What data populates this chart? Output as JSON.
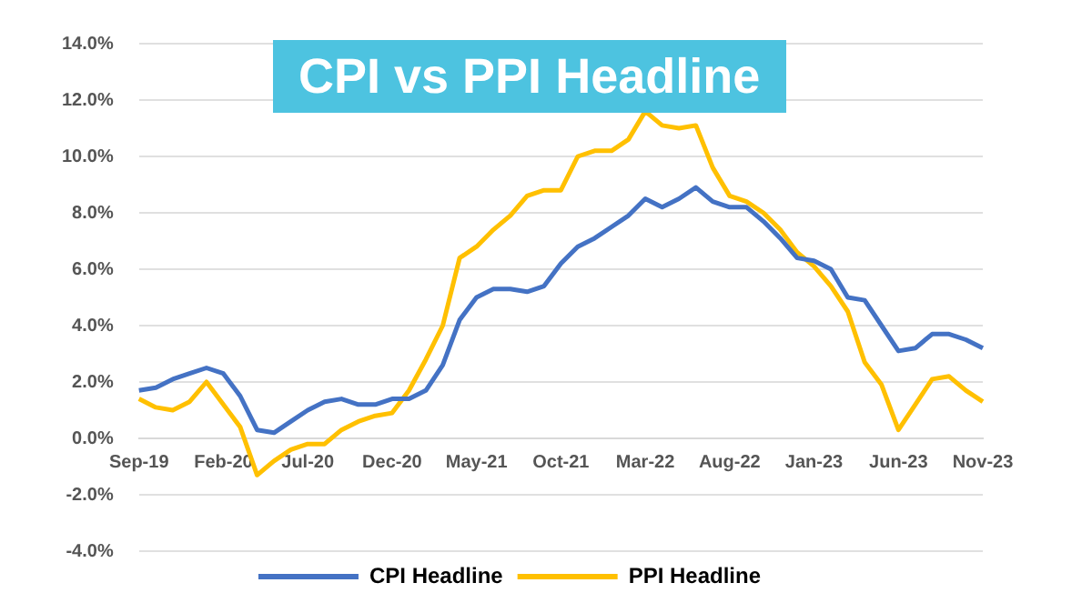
{
  "chart_data": {
    "type": "line",
    "title": "CPI vs PPI Headline",
    "categories": [
      "Sep-19",
      null,
      null,
      null,
      null,
      "Feb-20",
      null,
      null,
      null,
      null,
      "Jul-20",
      null,
      null,
      null,
      null,
      "Dec-20",
      null,
      null,
      null,
      null,
      "May-21",
      null,
      null,
      null,
      null,
      "Oct-21",
      null,
      null,
      null,
      null,
      "Mar-22",
      null,
      null,
      null,
      null,
      "Aug-22",
      null,
      null,
      null,
      null,
      "Jan-23",
      null,
      null,
      null,
      null,
      "Jun-23",
      null,
      null,
      null,
      null,
      "Nov-23"
    ],
    "series": [
      {
        "name": "CPI Headline",
        "color": "#4472c4",
        "values": [
          1.7,
          1.8,
          2.1,
          2.3,
          2.5,
          2.3,
          1.5,
          0.3,
          0.2,
          0.6,
          1.0,
          1.3,
          1.4,
          1.2,
          1.2,
          1.4,
          1.4,
          1.7,
          2.6,
          4.2,
          5.0,
          5.3,
          5.3,
          5.2,
          5.4,
          6.2,
          6.8,
          7.1,
          7.5,
          7.9,
          8.5,
          8.2,
          8.5,
          8.9,
          8.4,
          8.2,
          8.2,
          7.7,
          7.1,
          6.4,
          6.3,
          6.0,
          5.0,
          4.9,
          4.0,
          3.1,
          3.2,
          3.7,
          3.7,
          3.5,
          3.2
        ]
      },
      {
        "name": "PPI Headline",
        "color": "#ffc000",
        "values": [
          1.4,
          1.1,
          1.0,
          1.3,
          2.0,
          1.2,
          0.4,
          -1.3,
          -0.8,
          -0.4,
          -0.2,
          -0.2,
          0.3,
          0.6,
          0.8,
          0.9,
          1.7,
          2.8,
          4.0,
          6.4,
          6.8,
          7.4,
          7.9,
          8.6,
          8.8,
          8.8,
          10.0,
          10.2,
          10.2,
          10.6,
          11.6,
          11.1,
          11.0,
          11.1,
          9.6,
          8.6,
          8.4,
          8.0,
          7.4,
          6.6,
          6.1,
          5.4,
          4.5,
          2.7,
          1.9,
          0.3,
          1.2,
          2.1,
          2.2,
          1.7,
          1.3
        ]
      }
    ],
    "ylim": [
      -4,
      14
    ],
    "yticks": [
      {
        "value": -4,
        "label": "-4.0%"
      },
      {
        "value": -2,
        "label": "-2.0%"
      },
      {
        "value": 0,
        "label": "0.0%"
      },
      {
        "value": 2,
        "label": "2.0%"
      },
      {
        "value": 4,
        "label": "4.0%"
      },
      {
        "value": 6,
        "label": "6.0%"
      },
      {
        "value": 8,
        "label": "8.0%"
      },
      {
        "value": 10,
        "label": "10.0%"
      },
      {
        "value": 12,
        "label": "12.0%"
      },
      {
        "value": 14,
        "label": "14.0%"
      }
    ],
    "grid": "y",
    "legend": "bottom",
    "marker": "none",
    "line_style": "solid"
  }
}
